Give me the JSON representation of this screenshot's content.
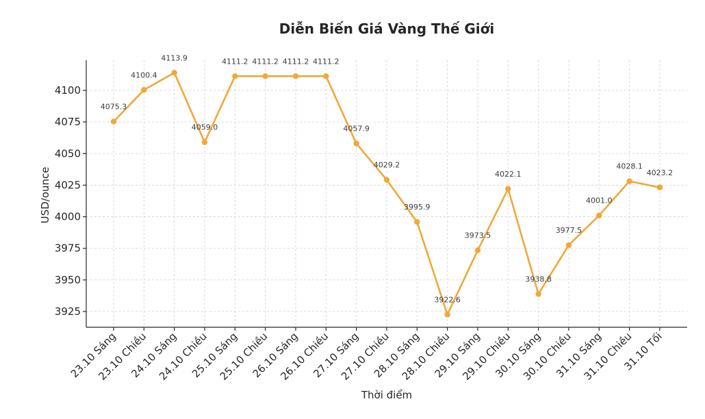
{
  "chart_data": {
    "type": "line",
    "title": "Diễn Biến Giá Vàng Thế Giới",
    "xlabel": "Thời điểm",
    "ylabel": "USD/ounce",
    "categories": [
      "23.10 Sáng",
      "23.10 Chiều",
      "24.10 Sáng",
      "24.10 Chiều",
      "25.10 Sáng",
      "25.10 Chiều",
      "26.10 Sáng",
      "26.10 Chiều",
      "27.10 Sáng",
      "27.10 Chiều",
      "28.10 Sáng",
      "28.10 Chiều",
      "29.10 Sáng",
      "29.10 Chiều",
      "30.10 Sáng",
      "30.10 Chiều",
      "31.10 Sáng",
      "31.10 Chiều",
      "31.10 Tối"
    ],
    "series": [
      {
        "name": "Giá vàng",
        "color": "#f0a838",
        "values": [
          4075.3,
          4100.4,
          4113.9,
          4059.0,
          4111.2,
          4111.2,
          4111.2,
          4111.2,
          4057.9,
          4029.2,
          3995.9,
          3922.6,
          3973.5,
          4022.1,
          3938.8,
          3977.5,
          4001.0,
          4028.1,
          4023.2
        ],
        "data_labels": [
          "4075.3",
          "4100.4",
          "4113.9",
          "4059.0",
          "4111.2",
          "4111.2",
          "4111.2",
          "4111.2",
          "4057.9",
          "4029.2",
          "3995.9",
          "3922.6",
          "3973.5",
          "4022.1",
          "3938.8",
          "3977.5",
          "4001.0",
          "4028.1",
          "4023.2"
        ]
      }
    ],
    "yticks": [
      3925,
      3950,
      3975,
      4000,
      4025,
      4050,
      4075,
      4100
    ],
    "ylim": [
      3912,
      4136
    ],
    "grid": true,
    "legend": null,
    "markers": true
  }
}
